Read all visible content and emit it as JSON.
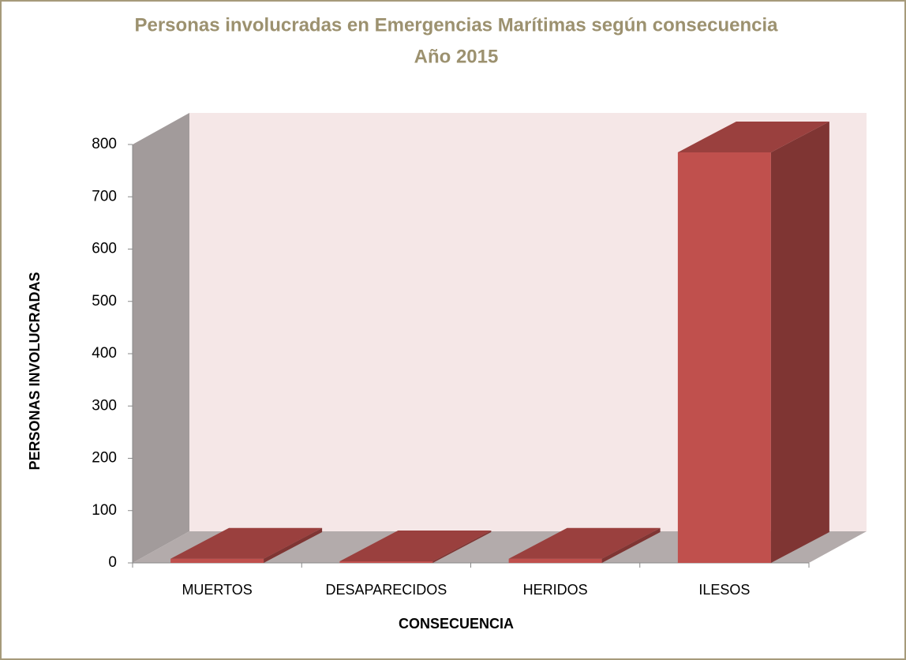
{
  "chart_data": {
    "type": "bar3d",
    "title": "Personas involucradas en Emergencias Marítimas según consecuencia",
    "subtitle": "Año 2015",
    "xlabel": "CONSECUENCIA",
    "ylabel": "PERSONAS INVOLUCRADAS",
    "categories": [
      "MUERTOS",
      "DESAPARECIDOS",
      "HERIDOS",
      "ILESOS"
    ],
    "values": [
      8,
      3,
      8,
      785
    ],
    "color": "#c0504d",
    "ylim": [
      0,
      800
    ],
    "yticks": [
      0,
      100,
      200,
      300,
      400,
      500,
      600,
      700,
      800
    ]
  }
}
